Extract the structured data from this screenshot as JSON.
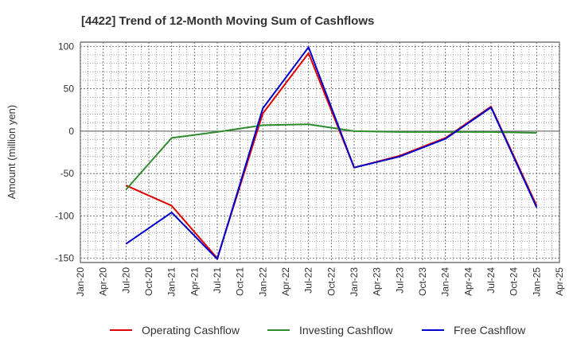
{
  "chart_data": {
    "type": "line",
    "title": "[4422]  Trend of 12-Month Moving Sum of Cashflows",
    "ylabel": "Amount (million yen)",
    "xlabel": "",
    "ylim": [
      -155,
      105
    ],
    "yticks": [
      100,
      50,
      0,
      -50,
      -100,
      -150
    ],
    "grid": true,
    "legend_position": "bottom",
    "categories": [
      "Jan-20",
      "Apr-20",
      "Jul-20",
      "Oct-20",
      "Jan-21",
      "Apr-21",
      "Jul-21",
      "Oct-21",
      "Jan-22",
      "Apr-22",
      "Jul-22",
      "Oct-22",
      "Jan-23",
      "Apr-23",
      "Jul-23",
      "Oct-23",
      "Jan-24",
      "Apr-24",
      "Jul-24",
      "Oct-24",
      "Jan-25",
      "Apr-25"
    ],
    "series": [
      {
        "name": "Operating Cashflow",
        "color": "#e00000",
        "points": [
          [
            "Jul-20",
            -64
          ],
          [
            "Jan-21",
            -88
          ],
          [
            "Jul-21",
            -150
          ],
          [
            "Jan-22",
            21
          ],
          [
            "Jul-22",
            92
          ],
          [
            "Jan-23",
            -43
          ],
          [
            "Jul-23",
            -29
          ],
          [
            "Jan-24",
            -8
          ],
          [
            "Jul-24",
            29
          ],
          [
            "Jan-25",
            -88
          ]
        ]
      },
      {
        "name": "Investing Cashflow",
        "color": "#2e8b2e",
        "points": [
          [
            "Jul-20",
            -69
          ],
          [
            "Jan-21",
            -8
          ],
          [
            "Jul-21",
            -1
          ],
          [
            "Jan-22",
            7
          ],
          [
            "Jul-22",
            8
          ],
          [
            "Jan-23",
            0
          ],
          [
            "Jul-23",
            -1
          ],
          [
            "Jan-24",
            -1
          ],
          [
            "Jul-24",
            -1
          ],
          [
            "Jan-25",
            -2
          ]
        ]
      },
      {
        "name": "Free Cashflow",
        "color": "#0000cc",
        "points": [
          [
            "Jul-20",
            -133
          ],
          [
            "Jan-21",
            -96
          ],
          [
            "Jul-21",
            -151
          ],
          [
            "Jan-22",
            27
          ],
          [
            "Jul-22",
            99
          ],
          [
            "Jan-23",
            -43
          ],
          [
            "Jul-23",
            -30
          ],
          [
            "Jan-24",
            -9
          ],
          [
            "Jul-24",
            28
          ],
          [
            "Jan-25",
            -90
          ]
        ]
      }
    ]
  }
}
